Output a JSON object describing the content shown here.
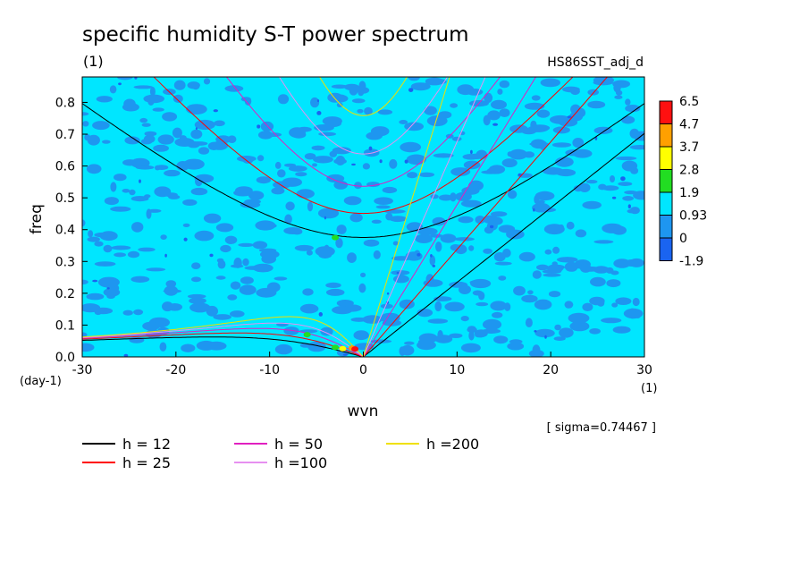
{
  "colors": {
    "contour_levels": [
      "#1a64f0",
      "#1e96f0",
      "#00e6ff",
      "#22dd22",
      "#ffff00",
      "#ffa000",
      "#ff1010"
    ],
    "curve_h12": "#000000",
    "curve_h25": "#ff0000",
    "curve_h50": "#e020c0",
    "curve_h100": "#e690f0",
    "curve_h200": "#f0e000"
  },
  "chart_data": {
    "type": "heatmap",
    "title": "specific humidity S-T power spectrum",
    "units_label": "(1)",
    "dataset_label": "HS86SST_adj_d",
    "xlabel": "wvn",
    "x_units": "(1)",
    "ylabel": "freq",
    "y_units": "(day-1)",
    "xlim": [
      -30,
      30
    ],
    "ylim": [
      0,
      0.88
    ],
    "x_ticks": [
      -30,
      -20,
      -10,
      0,
      10,
      20,
      30
    ],
    "x_tick_labels": [
      "-30",
      "-20",
      "-10",
      "0",
      "10",
      "20",
      "30"
    ],
    "y_ticks": [
      0.0,
      0.1,
      0.2,
      0.3,
      0.4,
      0.5,
      0.6,
      0.7,
      0.8
    ],
    "y_tick_labels": [
      "0.0",
      "0.1",
      "0.2",
      "0.3",
      "0.4",
      "0.5",
      "0.6",
      "0.7",
      "0.8"
    ],
    "colorbar_labels": [
      "6.5",
      "4.7",
      "3.7",
      "2.8",
      "1.9",
      "0.93",
      "0",
      "-1.9"
    ],
    "sigma_label": "[ sigma=0.74467 ]",
    "curve_legend": [
      {
        "label": "h = 12",
        "h": 12
      },
      {
        "label": "h = 25",
        "h": 25
      },
      {
        "label": "h = 50",
        "h": 50
      },
      {
        "label": "h =100",
        "h": 100
      },
      {
        "label": "h =200",
        "h": 200
      }
    ]
  }
}
